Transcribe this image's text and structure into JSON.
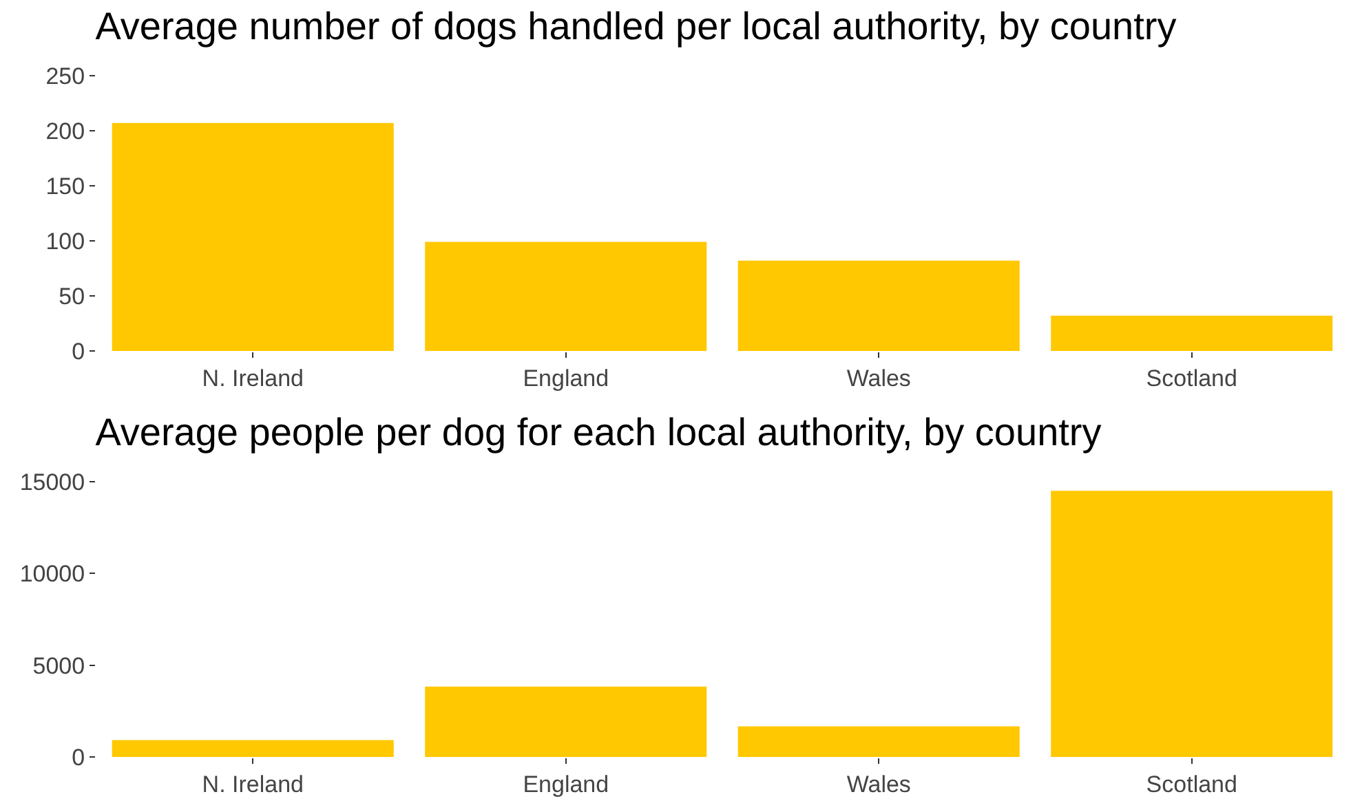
{
  "chart_data": [
    {
      "type": "bar",
      "title": "Average number of dogs handled per local authority, by country",
      "categories": [
        "N. Ireland",
        "England",
        "Wales",
        "Scotland"
      ],
      "values": [
        207,
        99,
        82,
        32
      ],
      "color": "#ffc800",
      "ylim": [
        0,
        250
      ],
      "yticks": [
        0,
        50,
        100,
        150,
        200,
        250
      ],
      "grid": false,
      "legend": false
    },
    {
      "type": "bar",
      "title": "Average people per dog for each local authority, by country",
      "categories": [
        "N. Ireland",
        "England",
        "Wales",
        "Scotland"
      ],
      "values": [
        920,
        3830,
        1670,
        14500
      ],
      "color": "#ffc800",
      "ylim": [
        0,
        15000
      ],
      "yticks": [
        0,
        5000,
        10000,
        15000
      ],
      "grid": false,
      "legend": false
    }
  ]
}
